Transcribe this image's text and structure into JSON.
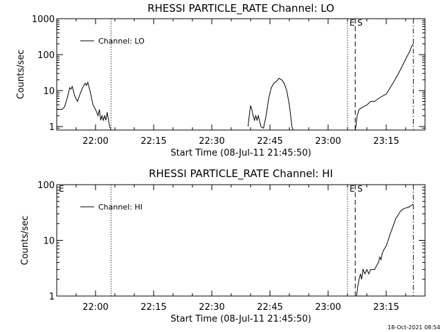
{
  "footer_timestamp": "18-Oct-2021 08:54",
  "chart_data": [
    {
      "type": "line",
      "title": "RHESSI PARTICLE_RATE Channel: LO",
      "xlabel": "Start Time (08-Jul-11 21:45:50)",
      "ylabel": "Counts/sec",
      "yscale": "log",
      "ylim": [
        0.8,
        1000
      ],
      "xlim": [
        "21:50:00",
        "23:25:00"
      ],
      "yticks": [
        {
          "value": 1,
          "label": "1"
        },
        {
          "value": 10,
          "label": "10"
        },
        {
          "value": 100,
          "label": "100"
        },
        {
          "value": 1000,
          "label": "1000"
        }
      ],
      "xticks": [
        {
          "time": "22:00",
          "label": "22:00"
        },
        {
          "time": "22:15",
          "label": "22:15"
        },
        {
          "time": "22:30",
          "label": "22:30"
        },
        {
          "time": "22:45",
          "label": "22:45"
        },
        {
          "time": "23:00",
          "label": "23:00"
        },
        {
          "time": "23:15",
          "label": "23:15"
        }
      ],
      "legend": {
        "placement": "top-left",
        "entries": [
          "Channel: LO"
        ]
      },
      "series": [
        {
          "name": "Channel: LO",
          "segments": [
            [
              [
                "21:50:00",
                3
              ],
              [
                "21:50:40",
                3
              ],
              [
                "21:51:20",
                3
              ],
              [
                "21:52:00",
                3.5
              ],
              [
                "21:52:40",
                6
              ],
              [
                "21:53:20",
                12
              ],
              [
                "21:53:40",
                11
              ],
              [
                "21:54:00",
                13
              ],
              [
                "21:54:40",
                7
              ],
              [
                "21:55:20",
                5
              ],
              [
                "21:56:00",
                8
              ],
              [
                "21:56:40",
                12
              ],
              [
                "21:57:20",
                16
              ],
              [
                "21:57:40",
                14
              ],
              [
                "21:58:00",
                17
              ],
              [
                "21:58:40",
                9
              ],
              [
                "21:59:20",
                4
              ],
              [
                "22:00:00",
                3
              ],
              [
                "22:00:40",
                2
              ],
              [
                "22:01:00",
                3
              ],
              [
                "22:01:20",
                1.5
              ],
              [
                "22:01:40",
                2
              ],
              [
                "22:02:00",
                1.5
              ],
              [
                "22:02:20",
                2
              ],
              [
                "22:02:40",
                1.5
              ],
              [
                "22:03:00",
                2.5
              ],
              [
                "22:03:20",
                1.5
              ],
              [
                "22:03:40",
                1
              ],
              [
                "22:04:00",
                0.8
              ]
            ],
            [
              [
                "22:39:20",
                1
              ],
              [
                "22:39:40",
                2
              ],
              [
                "22:40:00",
                3.8
              ],
              [
                "22:40:20",
                3
              ],
              [
                "22:40:40",
                2
              ],
              [
                "22:41:00",
                1.5
              ],
              [
                "22:41:20",
                2
              ],
              [
                "22:41:40",
                1.5
              ],
              [
                "22:42:00",
                2
              ],
              [
                "22:42:40",
                1
              ],
              [
                "22:43:20",
                0.9
              ],
              [
                "22:44:00",
                2
              ],
              [
                "22:44:40",
                6
              ],
              [
                "22:45:20",
                12
              ],
              [
                "22:46:00",
                16
              ],
              [
                "22:46:40",
                18
              ],
              [
                "22:47:20",
                22
              ],
              [
                "22:48:00",
                20
              ],
              [
                "22:48:40",
                16
              ],
              [
                "22:49:20",
                10
              ],
              [
                "22:50:00",
                4
              ],
              [
                "22:50:20",
                2
              ],
              [
                "22:50:40",
                1
              ],
              [
                "22:51:00",
                0.8
              ]
            ],
            [
              [
                "23:07:00",
                0.8
              ],
              [
                "23:07:10",
                1
              ],
              [
                "23:07:30",
                2
              ],
              [
                "23:08:00",
                3
              ],
              [
                "23:09:00",
                3.5
              ],
              [
                "23:10:00",
                4
              ],
              [
                "23:11:00",
                5
              ],
              [
                "23:12:00",
                5
              ],
              [
                "23:13:00",
                6
              ],
              [
                "23:14:00",
                7
              ],
              [
                "23:15:00",
                8
              ],
              [
                "23:16:00",
                12
              ],
              [
                "23:17:00",
                18
              ],
              [
                "23:18:00",
                28
              ],
              [
                "23:19:00",
                45
              ],
              [
                "23:20:00",
                75
              ],
              [
                "23:21:00",
                120
              ],
              [
                "23:21:40",
                180
              ],
              [
                "23:22:00",
                200
              ]
            ]
          ]
        }
      ],
      "markers": [
        {
          "time": "22:04:00",
          "style": "dotted",
          "label": ""
        },
        {
          "time": "23:05:00",
          "style": "dotted",
          "label": "E"
        },
        {
          "time": "23:07:00",
          "style": "dashed",
          "label": "S"
        },
        {
          "time": "23:22:00",
          "style": "dashdot",
          "label": ""
        }
      ]
    },
    {
      "type": "line",
      "title": "RHESSI PARTICLE_RATE Channel: HI",
      "xlabel": "Start Time (08-Jul-11 21:45:50)",
      "ylabel": "Counts/sec",
      "yscale": "log",
      "ylim": [
        1,
        100
      ],
      "xlim": [
        "21:50:00",
        "23:25:00"
      ],
      "yticks": [
        {
          "value": 1,
          "label": "1"
        },
        {
          "value": 10,
          "label": "10"
        },
        {
          "value": 100,
          "label": "100"
        }
      ],
      "xticks": [
        {
          "time": "22:00",
          "label": "22:00"
        },
        {
          "time": "22:15",
          "label": "22:15"
        },
        {
          "time": "22:30",
          "label": "22:30"
        },
        {
          "time": "22:45",
          "label": "22:45"
        },
        {
          "time": "23:00",
          "label": "23:00"
        },
        {
          "time": "23:15",
          "label": "23:15"
        }
      ],
      "legend": {
        "placement": "top-left",
        "entries": [
          "Channel: HI"
        ]
      },
      "series": [
        {
          "name": "Channel: HI",
          "segments": [
            [
              [
                "23:07:20",
                1
              ],
              [
                "23:07:40",
                1.5
              ],
              [
                "23:08:00",
                2
              ],
              [
                "23:08:20",
                2.5
              ],
              [
                "23:08:40",
                2
              ],
              [
                "23:09:00",
                3
              ],
              [
                "23:09:30",
                2.5
              ],
              [
                "23:10:00",
                3
              ],
              [
                "23:10:30",
                2.5
              ],
              [
                "23:11:00",
                3
              ],
              [
                "23:11:30",
                3
              ],
              [
                "23:12:00",
                3
              ],
              [
                "23:12:30",
                3.5
              ],
              [
                "23:13:00",
                4
              ],
              [
                "23:13:20",
                5
              ],
              [
                "23:13:40",
                4.5
              ],
              [
                "23:14:00",
                6
              ],
              [
                "23:14:30",
                7
              ],
              [
                "23:15:00",
                8
              ],
              [
                "23:15:30",
                10
              ],
              [
                "23:16:00",
                13
              ],
              [
                "23:16:30",
                16
              ],
              [
                "23:17:00",
                20
              ],
              [
                "23:17:30",
                25
              ],
              [
                "23:18:00",
                28
              ],
              [
                "23:18:30",
                32
              ],
              [
                "23:19:00",
                35
              ],
              [
                "23:19:30",
                37
              ],
              [
                "23:20:00",
                38
              ],
              [
                "23:21:00",
                40
              ],
              [
                "23:22:00",
                45
              ]
            ]
          ]
        }
      ],
      "markers": [
        {
          "time": "21:50:00",
          "style": "solid",
          "label": "E"
        },
        {
          "time": "22:04:00",
          "style": "dotted",
          "label": ""
        },
        {
          "time": "23:05:00",
          "style": "dotted",
          "label": "E"
        },
        {
          "time": "23:07:00",
          "style": "dashed",
          "label": "S"
        },
        {
          "time": "23:22:00",
          "style": "dashdot",
          "label": ""
        }
      ]
    }
  ]
}
